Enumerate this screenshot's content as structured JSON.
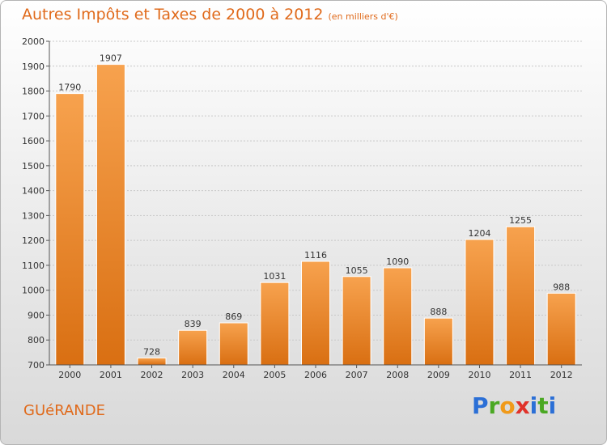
{
  "title": "Autres Impôts et Taxes de 2000 à 2012",
  "subtitle": "(en milliers d'€)",
  "city": "GUéRANDE",
  "logo": {
    "text": "Proxiti",
    "letters": [
      {
        "char": "P",
        "color": "#2b6fd6"
      },
      {
        "char": "r",
        "color": "#4aa823"
      },
      {
        "char": "o",
        "color": "#f09a1a"
      },
      {
        "char": "x",
        "color": "#e0322a"
      },
      {
        "char": "i",
        "color": "#2b6fd6"
      },
      {
        "char": "t",
        "color": "#4aa823"
      },
      {
        "char": "i",
        "color": "#2b6fd6"
      }
    ]
  },
  "colors": {
    "title": "#e06a1b",
    "bar_top": "#f7a24e",
    "bar_bottom": "#d96f12",
    "grid": "#c8c8c8",
    "axis": "#555555"
  },
  "chart_data": {
    "type": "bar",
    "categories": [
      "2000",
      "2001",
      "2002",
      "2003",
      "2004",
      "2005",
      "2006",
      "2007",
      "2008",
      "2009",
      "2010",
      "2011",
      "2012"
    ],
    "values": [
      1790,
      1907,
      728,
      839,
      869,
      1031,
      1116,
      1055,
      1090,
      888,
      1204,
      1255,
      988
    ],
    "value_labels": [
      "1790",
      "1907",
      "728",
      "839",
      "869",
      "1031",
      "1116",
      "1055",
      "1090",
      "888",
      "1204",
      "1255",
      "988"
    ],
    "ylim": [
      700,
      2000
    ],
    "yticks": [
      "700",
      "800",
      "900",
      "1000",
      "1100",
      "1200",
      "1300",
      "1400",
      "1500",
      "1600",
      "1700",
      "1800",
      "1900",
      "2000"
    ],
    "title": "Autres Impôts et Taxes de 2000 à 2012",
    "xlabel": "",
    "ylabel": "",
    "grid": true,
    "legend": "none"
  }
}
